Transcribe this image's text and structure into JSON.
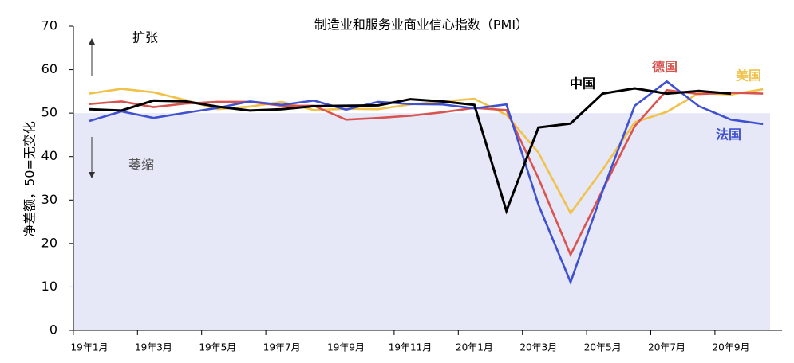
{
  "chart_data": {
    "type": "line",
    "title": "制造业和服务业商业信心指数（PMI）",
    "y_label": "净差额，50=无变化",
    "annotations": [
      "扩张",
      "萎缩"
    ],
    "categories": [
      "19年1月",
      null,
      "19年3月",
      null,
      "19年5月",
      null,
      "19年7月",
      null,
      "19年9月",
      null,
      "19年11月",
      null,
      "20年1月",
      null,
      "20年3月",
      null,
      "20年5月",
      null,
      "20年7月",
      null,
      "20年9月",
      null
    ],
    "ylim": [
      0,
      70
    ],
    "yticks": [
      0,
      10,
      20,
      30,
      40,
      50,
      60,
      70
    ],
    "shade_below": 50,
    "shade_color": "#e6e8f8",
    "series": [
      {
        "name": "美国",
        "color": "#f0c24a",
        "values": [
          54.5,
          55.6,
          54.8,
          53.0,
          50.9,
          51.5,
          52.6,
          50.7,
          51.0,
          50.9,
          52.0,
          52.7,
          53.3,
          49.6,
          40.9,
          27.0,
          37.0,
          47.9,
          50.3,
          54.6,
          54.3,
          55.5
        ]
      },
      {
        "name": "德国",
        "color": "#d9534f",
        "values": [
          52.1,
          52.7,
          51.4,
          52.2,
          52.6,
          52.6,
          51.7,
          51.7,
          48.5,
          48.9,
          49.4,
          50.2,
          51.2,
          50.7,
          35.0,
          17.4,
          32.3,
          47.0,
          55.3,
          54.4,
          54.7,
          54.5
        ]
      },
      {
        "name": "法国",
        "color": "#3f51d0",
        "values": [
          48.2,
          50.4,
          48.9,
          50.1,
          51.2,
          52.7,
          51.9,
          52.9,
          50.8,
          52.6,
          52.1,
          52.0,
          51.1,
          52.0,
          28.9,
          11.1,
          32.1,
          51.7,
          57.3,
          51.6,
          48.5,
          47.5
        ]
      },
      {
        "name": "中国",
        "color": "#000000",
        "values": [
          50.9,
          50.6,
          52.9,
          52.7,
          51.5,
          50.6,
          50.9,
          51.6,
          51.7,
          51.8,
          53.2,
          52.7,
          51.9,
          27.5,
          46.7,
          47.6,
          54.5,
          55.7,
          54.5,
          55.1,
          54.5,
          null
        ]
      }
    ]
  }
}
